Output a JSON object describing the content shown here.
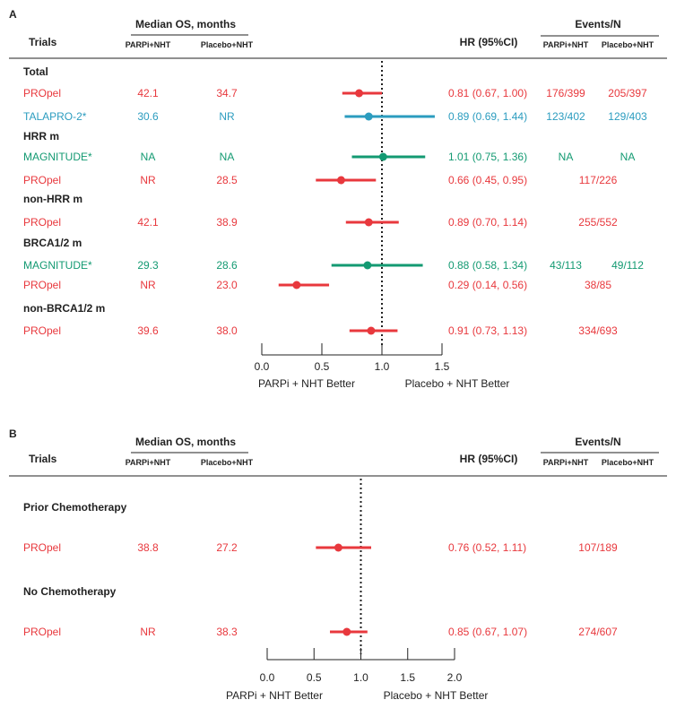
{
  "colors": {
    "propel": "#e8383d",
    "talapro": "#2b9cbf",
    "magnitude": "#139a72",
    "text": "#222222"
  },
  "headers": {
    "trials": "Trials",
    "median_os": "Median OS, months",
    "parpi": "PARPi+NHT",
    "placebo": "Placebo+NHT",
    "hr": "HR (95%CI)",
    "events": "Events/N"
  },
  "chart_data": [
    {
      "type": "forest",
      "panel": "A",
      "reference_line": 1.0,
      "xlim": [
        0.0,
        1.5
      ],
      "ticks": [
        "0.0",
        "0.5",
        "1.0",
        "1.5"
      ],
      "xlabel_left": "PARPi + NHT Better",
      "xlabel_right": "Placebo + NHT Better",
      "rows": [
        {
          "kind": "group",
          "label": "Total"
        },
        {
          "kind": "trial",
          "trial": "PROpel",
          "color": "#e8383d",
          "parpi_os": "42.1",
          "placebo_os": "34.7",
          "hr_text": "0.81 (0.67, 1.00)",
          "hr": 0.81,
          "lo": 0.67,
          "hi": 1.0,
          "events_parpi": "176/399",
          "events_placebo": "205/397"
        },
        {
          "kind": "trial",
          "trial": "TALAPRO-2*",
          "color": "#2b9cbf",
          "parpi_os": "30.6",
          "placebo_os": "NR",
          "hr_text": "0.89 (0.69, 1.44)",
          "hr": 0.89,
          "lo": 0.69,
          "hi": 1.44,
          "events_parpi": "123/402",
          "events_placebo": "129/403"
        },
        {
          "kind": "group",
          "label": "HRR m"
        },
        {
          "kind": "trial",
          "trial": "MAGNITUDE*",
          "color": "#139a72",
          "parpi_os": "NA",
          "placebo_os": "NA",
          "hr_text": "1.01 (0.75, 1.36)",
          "hr": 1.01,
          "lo": 0.75,
          "hi": 1.36,
          "events_parpi": "NA",
          "events_placebo": "NA"
        },
        {
          "kind": "trial",
          "trial": "PROpel",
          "color": "#e8383d",
          "parpi_os": "NR",
          "placebo_os": "28.5",
          "hr_text": "0.66 (0.45, 0.95)",
          "hr": 0.66,
          "lo": 0.45,
          "hi": 0.95,
          "events_total": "117/226"
        },
        {
          "kind": "group",
          "label": "non-HRR m"
        },
        {
          "kind": "trial",
          "trial": "PROpel",
          "color": "#e8383d",
          "parpi_os": "42.1",
          "placebo_os": "38.9",
          "hr_text": "0.89 (0.70, 1.14)",
          "hr": 0.89,
          "lo": 0.7,
          "hi": 1.14,
          "events_total": "255/552"
        },
        {
          "kind": "group",
          "label": "BRCA1/2 m"
        },
        {
          "kind": "trial",
          "trial": "MAGNITUDE*",
          "color": "#139a72",
          "parpi_os": "29.3",
          "placebo_os": "28.6",
          "hr_text": "0.88 (0.58, 1.34)",
          "hr": 0.88,
          "lo": 0.58,
          "hi": 1.34,
          "events_parpi": "43/113",
          "events_placebo": "49/112"
        },
        {
          "kind": "trial",
          "trial": "PROpel",
          "color": "#e8383d",
          "parpi_os": "NR",
          "placebo_os": "23.0",
          "hr_text": "0.29 (0.14, 0.56)",
          "hr": 0.29,
          "lo": 0.14,
          "hi": 0.56,
          "events_total": "38/85"
        },
        {
          "kind": "group",
          "label": "non-BRCA1/2 m"
        },
        {
          "kind": "trial",
          "trial": "PROpel",
          "color": "#e8383d",
          "parpi_os": "39.6",
          "placebo_os": "38.0",
          "hr_text": "0.91 (0.73, 1.13)",
          "hr": 0.91,
          "lo": 0.73,
          "hi": 1.13,
          "events_total": "334/693"
        }
      ]
    },
    {
      "type": "forest",
      "panel": "B",
      "reference_line": 1.0,
      "xlim": [
        0.0,
        2.0
      ],
      "ticks": [
        "0.0",
        "0.5",
        "1.0",
        "1.5",
        "2.0"
      ],
      "xlabel_left": "PARPi + NHT Better",
      "xlabel_right": "Placebo + NHT Better",
      "rows": [
        {
          "kind": "group",
          "label": "Prior Chemotherapy"
        },
        {
          "kind": "trial",
          "trial": "PROpel",
          "color": "#e8383d",
          "parpi_os": "38.8",
          "placebo_os": "27.2",
          "hr_text": "0.76 (0.52, 1.11)",
          "hr": 0.76,
          "lo": 0.52,
          "hi": 1.11,
          "events_total": "107/189"
        },
        {
          "kind": "group",
          "label": "No Chemotherapy"
        },
        {
          "kind": "trial",
          "trial": "PROpel",
          "color": "#e8383d",
          "parpi_os": "NR",
          "placebo_os": "38.3",
          "hr_text": "0.85 (0.67, 1.07)",
          "hr": 0.85,
          "lo": 0.67,
          "hi": 1.07,
          "events_total": "274/607"
        }
      ]
    }
  ]
}
